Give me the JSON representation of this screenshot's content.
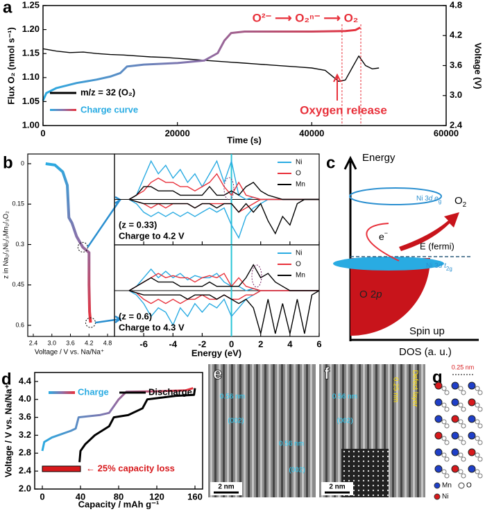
{
  "chart_data": [
    {
      "type": "line",
      "panel": "a",
      "xlabel": "Time (s)",
      "ylabel": "Flux O₂ (nmol s⁻¹)",
      "y2label": "Voltage (V)",
      "xlim": [
        0,
        60000
      ],
      "xticks": [
        0,
        20000,
        40000,
        60000
      ],
      "ylim": [
        1,
        1.25
      ],
      "yticks": [
        {
          "value": 1,
          "label": "1.00"
        },
        1.05,
        {
          "value": 1.1,
          "label": "1.10"
        },
        1.15,
        {
          "value": 1.2,
          "label": "1.20"
        },
        1.25
      ],
      "y2lim": [
        2.4,
        4.8
      ],
      "y2ticks": [
        2.4,
        {
          "value": 3,
          "label": "3.0"
        },
        3.6,
        4.2,
        4.8
      ],
      "series": [
        {
          "name": "m/z = 32 (O₂)",
          "color": "#000000",
          "x": [
            0,
            2000,
            4000,
            6000,
            8000,
            10000,
            12000,
            14000,
            16000,
            18000,
            20000,
            22000,
            24000,
            26000,
            28000,
            30000,
            32000,
            34000,
            36000,
            38000,
            40000,
            42000,
            44000,
            45000,
            46000,
            47000,
            48000,
            49000,
            50000
          ],
          "values": [
            1.16,
            1.155,
            1.152,
            1.153,
            1.15,
            1.148,
            1.147,
            1.145,
            1.143,
            1.142,
            1.14,
            1.138,
            1.136,
            1.134,
            1.132,
            1.13,
            1.128,
            1.126,
            1.124,
            1.122,
            1.12,
            1.115,
            1.092,
            1.095,
            1.12,
            1.145,
            1.125,
            1.118,
            1.12
          ]
        },
        {
          "name": "Charge curve",
          "colors": [
            "#29abe2",
            "#8a6fa8",
            "#e8303a"
          ],
          "axis": "y2",
          "x": [
            0,
            500,
            2000,
            5000,
            8000,
            10000,
            11500,
            12500,
            15000,
            20000,
            24000,
            26000,
            27000,
            28000,
            30000,
            35000,
            40000,
            45000,
            46500,
            47200
          ],
          "values": [
            2.9,
            3.05,
            3.15,
            3.25,
            3.32,
            3.38,
            3.45,
            3.58,
            3.62,
            3.65,
            3.7,
            3.85,
            4.1,
            4.25,
            4.28,
            4.28,
            4.28,
            4.29,
            4.31,
            4.36
          ]
        }
      ],
      "annotations": [
        "O²⁻ ⟶ O₂ⁿ⁻ ⟶ O₂",
        "Oxygen release"
      ],
      "markers_x": [
        44500,
        47300
      ],
      "marker_color": "#e8303a"
    },
    {
      "type": "line",
      "panel": "b",
      "xlabel": "Voltage / V vs. Na/Na⁺",
      "ylabel": "z in Na₂/₃Ni₁/₃Mn₂/₃O₂",
      "xlim": [
        2.4,
        4.8
      ],
      "xticks": [
        2.4,
        {
          "value": 3,
          "label": "3.0"
        },
        3.6,
        4.2,
        4.8
      ],
      "ylim": [
        0,
        0.6
      ],
      "y_inverted": true,
      "yticks": [
        0,
        0.15,
        0.3,
        0.45,
        0.6
      ],
      "series": [
        {
          "colors": [
            "#29abe2",
            "#8a6fa8",
            "#e8303a"
          ],
          "x": [
            2.8,
            3.1,
            3.35,
            3.5,
            3.55,
            3.6,
            3.65,
            3.8,
            4.0,
            4.2,
            4.2,
            4.22,
            4.25
          ],
          "values": [
            0,
            0.005,
            0.03,
            0.08,
            0.2,
            0.21,
            0.22,
            0.27,
            0.31,
            0.33,
            0.45,
            0.55,
            0.59
          ]
        }
      ]
    },
    {
      "type": "dos",
      "show_tick_labels": false,
      "xlim": [
        -8,
        6
      ],
      "xticks": [
        -6,
        -4,
        -2,
        0,
        2,
        4,
        6
      ],
      "ylim": [
        -1,
        1
      ],
      "fermi": 0,
      "fermi_color": "#29c4d6",
      "x": [
        -7,
        -6.5,
        -6,
        -5.5,
        -5,
        -4.5,
        -4,
        -3.5,
        -3,
        -2.5,
        -2,
        -1.5,
        -1,
        -0.5,
        0,
        0.5,
        1,
        1.5,
        2,
        2.5,
        3,
        3.5,
        4,
        4.5,
        5,
        5.5,
        6
      ],
      "series": [
        {
          "name": "Ni",
          "color": "#29abe2",
          "values": [
            0,
            0.1,
            0.5,
            0.9,
            0.6,
            0.8,
            0.5,
            0.7,
            0.4,
            0.6,
            0.3,
            0.6,
            0.9,
            0.4,
            0.9,
            0.1,
            0,
            0.05,
            0,
            0,
            0,
            0,
            0,
            0,
            0,
            0,
            0
          ],
          "values_down": [
            0,
            -0.1,
            -0.3,
            -0.4,
            -0.3,
            -0.4,
            -0.3,
            -0.4,
            -0.3,
            -0.4,
            -0.3,
            -0.2,
            -0.3,
            -0.2,
            -0.6,
            -0.9,
            -0.4,
            -0.2,
            -0.1,
            0,
            0,
            0,
            0,
            0,
            0,
            0,
            0
          ]
        },
        {
          "name": "O",
          "color": "#e8303a",
          "values": [
            0,
            0.1,
            0.2,
            0.4,
            0.5,
            0.4,
            0.4,
            0.3,
            0.3,
            0.2,
            0.3,
            0.4,
            0.6,
            0.3,
            0.1,
            0.4,
            0.1,
            0.05,
            0,
            0,
            0,
            0,
            0,
            0,
            0,
            0,
            0
          ],
          "values_down": [
            0,
            -0.05,
            -0.1,
            -0.2,
            -0.1,
            -0.2,
            -0.1,
            -0.1,
            -0.1,
            -0.2,
            -0.1,
            -0.1,
            -0.1,
            -0.1,
            -0.1,
            -0.3,
            -0.2,
            -0.1,
            0,
            0,
            0,
            0,
            0,
            0,
            0,
            0,
            0
          ]
        },
        {
          "name": "Mn",
          "color": "#000000",
          "values": [
            0,
            0.1,
            0.3,
            0.3,
            0.2,
            0.2,
            0.2,
            0.1,
            0.1,
            0.1,
            0.1,
            0.3,
            0.1,
            0.1,
            0.2,
            0.1,
            0.3,
            0.4,
            0.2,
            0.1,
            0.05,
            0,
            0,
            0,
            0,
            0,
            0
          ],
          "values_down": [
            0,
            -0.05,
            -0.1,
            -0.1,
            -0.1,
            -0.1,
            -0.1,
            -0.1,
            -0.1,
            -0.2,
            -0.1,
            -0.1,
            -0.2,
            -0.1,
            -0.1,
            -0.3,
            -0.1,
            -0.3,
            -0.1,
            -0.5,
            -0.8,
            -0.4,
            -0.6,
            -0.1,
            0,
            0,
            0
          ]
        }
      ],
      "annotations": [
        "(z = 0.33)",
        "Charge to 4.2 V"
      ]
    },
    {
      "type": "dos",
      "show_tick_labels": true,
      "xlabel": "Energy (eV)",
      "xlim": [
        -8,
        6
      ],
      "xticks": [
        -6,
        -4,
        -2,
        0,
        2,
        4,
        6
      ],
      "ylim": [
        -1,
        1
      ],
      "fermi": 0,
      "fermi_color": "#29c4d6",
      "x": [
        -7,
        -6.5,
        -6,
        -5.5,
        -5,
        -4.5,
        -4,
        -3.5,
        -3,
        -2.5,
        -2,
        -1.5,
        -1,
        -0.5,
        0,
        0.5,
        1,
        1.5,
        2,
        2.5,
        3,
        3.5,
        4,
        4.5,
        5,
        5.5,
        6
      ],
      "series": [
        {
          "name": "Ni",
          "color": "#29abe2",
          "values": [
            0,
            0.1,
            0.3,
            0.5,
            0.3,
            0.45,
            0.3,
            0.4,
            0.25,
            0.35,
            0.3,
            0.3,
            0.4,
            0.2,
            0.1,
            0.1,
            0,
            0.05,
            0,
            0,
            0,
            0,
            0,
            0,
            0,
            0,
            0
          ],
          "values_down": [
            0,
            -0.1,
            -0.3,
            -0.6,
            -0.4,
            -0.5,
            -0.8,
            -0.4,
            -0.6,
            -0.3,
            -0.5,
            -0.3,
            -0.4,
            -0.2,
            -0.6,
            -0.4,
            -0.2,
            -0.1,
            0,
            0,
            0,
            0,
            0,
            0,
            0,
            0,
            0
          ]
        },
        {
          "name": "O",
          "color": "#e8303a",
          "values": [
            0,
            0.1,
            0.2,
            0.3,
            0.4,
            0.3,
            0.35,
            0.3,
            0.3,
            0.2,
            0.3,
            0.35,
            0.3,
            0.4,
            0.1,
            0.3,
            0.1,
            0.05,
            0,
            0,
            0,
            0,
            0,
            0,
            0,
            0,
            0
          ],
          "values_down": [
            0,
            -0.05,
            -0.2,
            -0.3,
            -0.2,
            -0.3,
            -0.2,
            -0.3,
            -0.2,
            -0.2,
            -0.1,
            -0.2,
            -0.2,
            -0.1,
            -0.2,
            -0.2,
            -0.1,
            -0.1,
            0,
            0,
            0,
            0,
            0,
            0,
            0,
            0,
            0
          ]
        },
        {
          "name": "Mn",
          "color": "#000000",
          "values": [
            0,
            0.1,
            0.2,
            0.3,
            0.2,
            0.2,
            0.2,
            0.1,
            0.1,
            0.1,
            0.1,
            0.2,
            0.1,
            0.1,
            0.1,
            0.1,
            0.3,
            0.6,
            0.3,
            0.4,
            0.2,
            0.1,
            0,
            0,
            0,
            0,
            0
          ],
          "values_down": [
            0,
            -0.05,
            -0.1,
            -0.1,
            -0.1,
            -0.1,
            -0.1,
            -0.1,
            -0.2,
            -0.1,
            -0.1,
            -0.1,
            -0.2,
            -0.1,
            -0.2,
            -0.3,
            -0.2,
            -0.4,
            -1,
            -0.2,
            -1,
            -0.3,
            -1,
            -0.2,
            -1,
            -0.1,
            0
          ]
        }
      ],
      "annotations": [
        "(z = 0.6)",
        "Charge to 4.3 V"
      ]
    },
    {
      "type": "line",
      "panel": "d",
      "xlabel": "Capacity / mAh g⁻¹",
      "ylabel": "Voltage / V vs. Na/Na⁺",
      "xlim": [
        -8,
        168
      ],
      "xticks": [
        0,
        40,
        80,
        120,
        160
      ],
      "ylim": [
        2,
        4.6
      ],
      "yticks": [
        {
          "value": 2,
          "label": "2.0"
        },
        2.4,
        2.8,
        3.2,
        3.6,
        {
          "value": 4,
          "label": "4.0"
        },
        4.4
      ],
      "series": [
        {
          "name": "Charge",
          "colors": [
            "#29abe2",
            "#8a6fa8",
            "#e8303a"
          ],
          "x": [
            0,
            2,
            10,
            30,
            35,
            38,
            60,
            70,
            80,
            88,
            120,
            150,
            158
          ],
          "values": [
            2.85,
            3.05,
            3.15,
            3.3,
            3.35,
            3.6,
            3.65,
            3.7,
            4.0,
            4.17,
            4.18,
            4.2,
            4.25
          ]
        },
        {
          "name": "Discharge",
          "color": "#000000",
          "x": [
            160,
            159,
            140,
            110,
            105,
            90,
            75,
            70,
            55,
            45,
            40,
            39
          ],
          "values": [
            4.25,
            4.1,
            4.08,
            4.0,
            3.8,
            3.65,
            3.6,
            3.4,
            3.2,
            3.0,
            2.85,
            2.6
          ]
        }
      ],
      "loss_bar": {
        "x": [
          0,
          40
        ],
        "value": 2.45,
        "color": "#d7191c",
        "label": "← 25% capacity loss"
      }
    }
  ],
  "diagram": {
    "panel": "c",
    "axis_y": "Energy",
    "axis_x": "DOS (a. u.)",
    "spin": "Spin up",
    "eg": [
      "Ni 3",
      "d",
      " e",
      "g"
    ],
    "t2g": [
      "Ni 3",
      "d",
      " t",
      "2g"
    ],
    "o2p": [
      "O 2",
      "p"
    ],
    "electron": [
      "e",
      "−"
    ],
    "o2": [
      "O",
      "2"
    ],
    "fermi": "E (fermi)"
  },
  "images": [
    {
      "panel": "e",
      "labels": [
        "0.56 nm",
        "(002)",
        "0.56 nm",
        "(002)"
      ],
      "scale_bar": "2 nm"
    },
    {
      "panel": "f",
      "labels": [
        "0.56 nm",
        "(002)",
        "0.25 nm",
        "Defect layer"
      ],
      "scale_bar": "2 nm"
    },
    {
      "panel": "g",
      "labels": [
        "0.25 nm"
      ],
      "legend": [
        "Mn",
        "O",
        "Ni"
      ]
    }
  ]
}
